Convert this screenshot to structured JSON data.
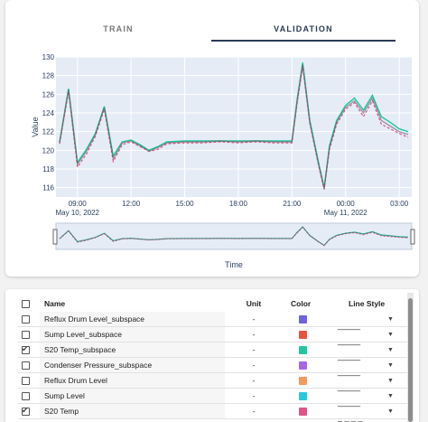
{
  "tabs": {
    "train": "TRAIN",
    "validation": "VALIDATION",
    "active": "validation"
  },
  "chart_data": {
    "type": "line",
    "ylabel": "Value",
    "xlabel": "Time",
    "ylim": [
      115,
      130
    ],
    "y_ticks": [
      "116",
      "118",
      "120",
      "122",
      "124",
      "126",
      "128",
      "130"
    ],
    "x_ticks": [
      "09:00",
      "12:00",
      "15:00",
      "18:00",
      "21:00",
      "00:00",
      "03:00"
    ],
    "x_subticks": [
      "May 10, 2022",
      "May 11, 2022"
    ],
    "x_hours": [
      8.0,
      8.5,
      9.0,
      9.5,
      10.0,
      10.5,
      11.0,
      11.5,
      12.0,
      12.5,
      13.0,
      13.5,
      14.0,
      15.0,
      16.0,
      17.0,
      18.0,
      19.0,
      20.0,
      21.0,
      21.3,
      21.6,
      22.0,
      22.5,
      22.8,
      23.1,
      23.5,
      24.0,
      24.5,
      25.0,
      25.5,
      26.0,
      26.5,
      27.0,
      27.5
    ],
    "series": [
      {
        "color": "#1fc7a0",
        "dash": "solid",
        "values": [
          120.9,
          126.6,
          118.7,
          120.1,
          121.8,
          124.7,
          119.4,
          120.9,
          121.1,
          120.6,
          120.0,
          120.4,
          120.9,
          121.0,
          121.0,
          121.0,
          121.0,
          121.0,
          121.0,
          121.0,
          125.6,
          129.4,
          123.2,
          118.6,
          116.0,
          120.5,
          123.2,
          124.8,
          125.6,
          124.3,
          125.9,
          123.6,
          123.0,
          122.3,
          122.0
        ]
      },
      {
        "color": "#e0548a",
        "dash": "dash",
        "values": [
          120.7,
          126.3,
          118.2,
          119.6,
          121.5,
          124.4,
          118.8,
          120.6,
          120.9,
          120.4,
          119.9,
          120.1,
          120.7,
          120.8,
          120.8,
          120.9,
          120.8,
          120.9,
          120.8,
          120.8,
          125.2,
          129.0,
          122.9,
          118.3,
          115.8,
          120.1,
          122.8,
          124.4,
          125.1,
          123.6,
          125.3,
          122.8,
          122.3,
          121.8,
          121.4
        ]
      },
      {
        "color": "#555555",
        "dash": "solid",
        "values": [
          120.8,
          126.5,
          118.5,
          119.9,
          121.7,
          124.6,
          119.1,
          120.8,
          121.0,
          120.5,
          119.9,
          120.3,
          120.8,
          120.9,
          120.9,
          121.0,
          120.9,
          121.0,
          120.9,
          120.9,
          125.4,
          129.2,
          123.0,
          118.4,
          115.9,
          120.3,
          123.0,
          124.6,
          125.3,
          124.0,
          125.6,
          123.2,
          122.6,
          122.0,
          121.7
        ]
      }
    ]
  },
  "table": {
    "headers": {
      "name": "Name",
      "unit": "Unit",
      "color": "Color",
      "style": "Line Style"
    },
    "rows": [
      {
        "name": "Reflux Drum Level_subspace",
        "unit": "-",
        "color": "#6f63e0",
        "checked": false,
        "style": "solid"
      },
      {
        "name": "Sump Level_subspace",
        "unit": "-",
        "color": "#e8533a",
        "checked": false,
        "style": "solid"
      },
      {
        "name": "S20 Temp_subspace",
        "unit": "-",
        "color": "#1fc7a0",
        "checked": true,
        "style": "solid"
      },
      {
        "name": "Condenser Pressure_subspace",
        "unit": "-",
        "color": "#a867e6",
        "checked": false,
        "style": "solid"
      },
      {
        "name": "Reflux Drum Level",
        "unit": "-",
        "color": "#f59a5d",
        "checked": false,
        "style": "solid"
      },
      {
        "name": "Sump Level",
        "unit": "-",
        "color": "#26c9de",
        "checked": false,
        "style": "solid"
      },
      {
        "name": "S20 Temp",
        "unit": "-",
        "color": "#e0548a",
        "checked": true,
        "style": "dash"
      }
    ]
  }
}
